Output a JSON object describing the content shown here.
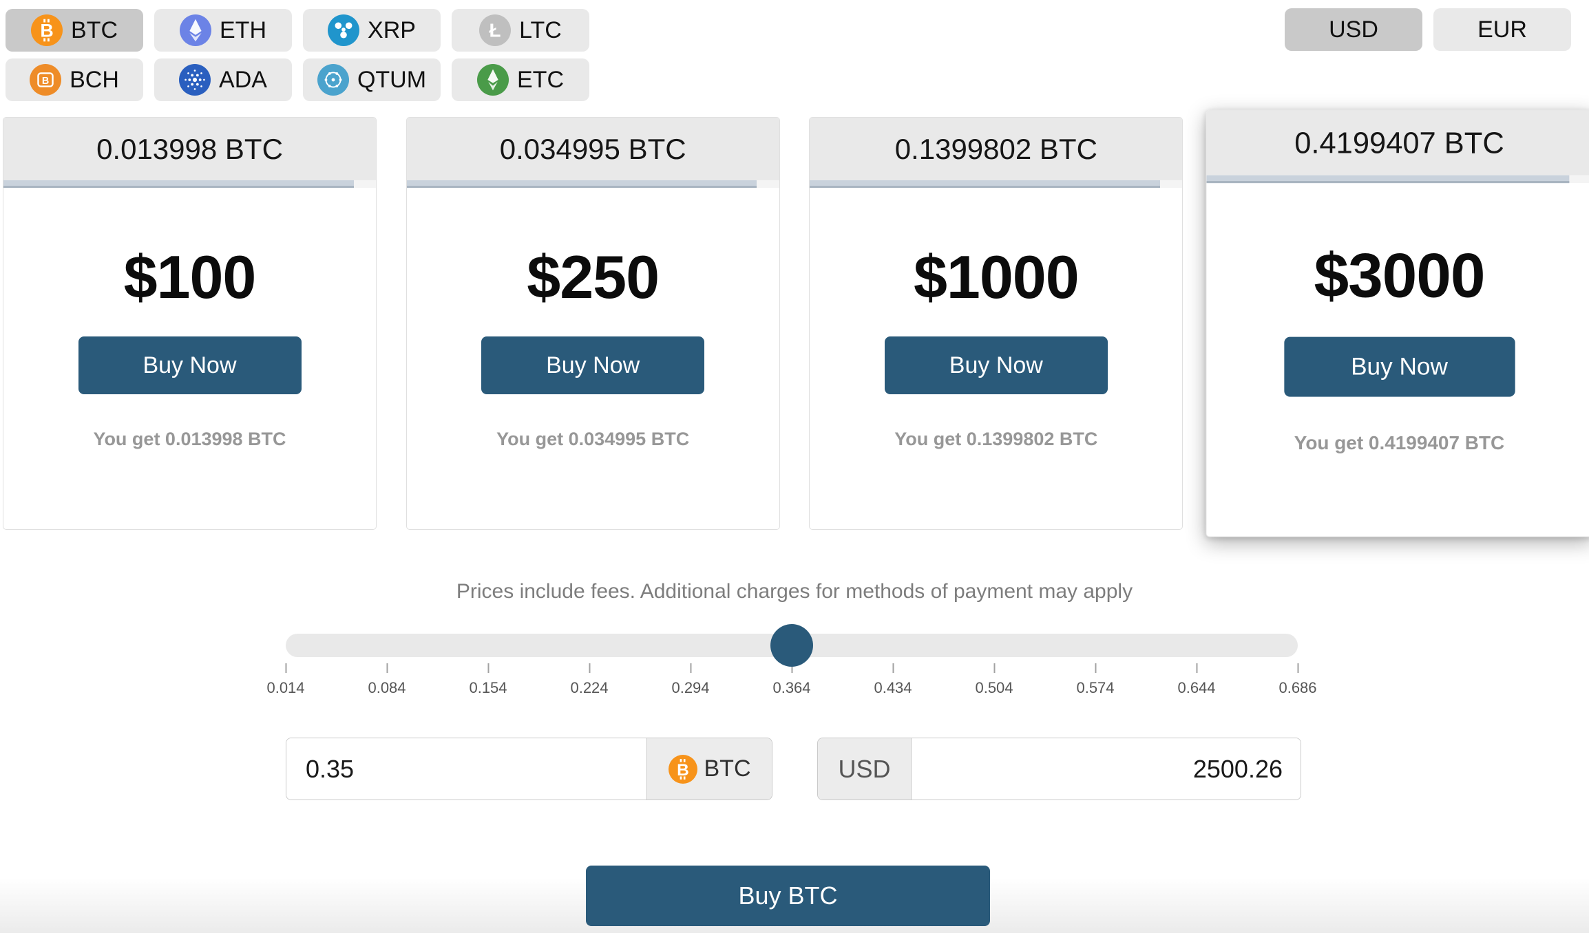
{
  "colors": {
    "accent": "#2a5a7a",
    "selected_pill": "#c9c9c9",
    "pill": "#e9e9e9",
    "progress_bar": "#c9d2dc"
  },
  "coins": {
    "items": [
      {
        "label": "BTC",
        "selected": true,
        "color": "#f7931a"
      },
      {
        "label": "ETH",
        "selected": false,
        "color": "#6c83e6"
      },
      {
        "label": "XRP",
        "selected": false,
        "color": "#2095cc"
      },
      {
        "label": "LTC",
        "selected": false,
        "color": "#bfbfbf"
      },
      {
        "label": "BCH",
        "selected": false,
        "color": "#ee8c28"
      },
      {
        "label": "ADA",
        "selected": false,
        "color": "#2a5fbf"
      },
      {
        "label": "QTUM",
        "selected": false,
        "color": "#4ba3cd"
      },
      {
        "label": "ETC",
        "selected": false,
        "color": "#4a9b49"
      }
    ]
  },
  "currencies": {
    "items": [
      {
        "label": "USD",
        "selected": true
      },
      {
        "label": "EUR",
        "selected": false
      }
    ]
  },
  "cards": {
    "items": [
      {
        "btc_amount": "0.013998 BTC",
        "price": "$100",
        "button": "Buy Now",
        "you_get": "You get 0.013998 BTC",
        "highlighted": false
      },
      {
        "btc_amount": "0.034995 BTC",
        "price": "$250",
        "button": "Buy Now",
        "you_get": "You get 0.034995 BTC",
        "highlighted": false
      },
      {
        "btc_amount": "0.1399802 BTC",
        "price": "$1000",
        "button": "Buy Now",
        "you_get": "You get 0.1399802 BTC",
        "highlighted": false
      },
      {
        "btc_amount": "0.4199407 BTC",
        "price": "$3000",
        "button": "Buy Now",
        "you_get": "You get 0.4199407 BTC",
        "highlighted": true
      }
    ]
  },
  "fees_note": "Prices include fees. Additional charges for methods of payment may apply",
  "slider": {
    "value": "0.35",
    "ticks": [
      "0.014",
      "0.084",
      "0.154",
      "0.224",
      "0.294",
      "0.364",
      "0.434",
      "0.504",
      "0.574",
      "0.644",
      "0.686"
    ]
  },
  "inputs": {
    "crypto": {
      "value": "0.35",
      "unit": "BTC"
    },
    "fiat": {
      "unit": "USD",
      "value": "2500.26"
    }
  },
  "buy_button": "Buy BTC"
}
